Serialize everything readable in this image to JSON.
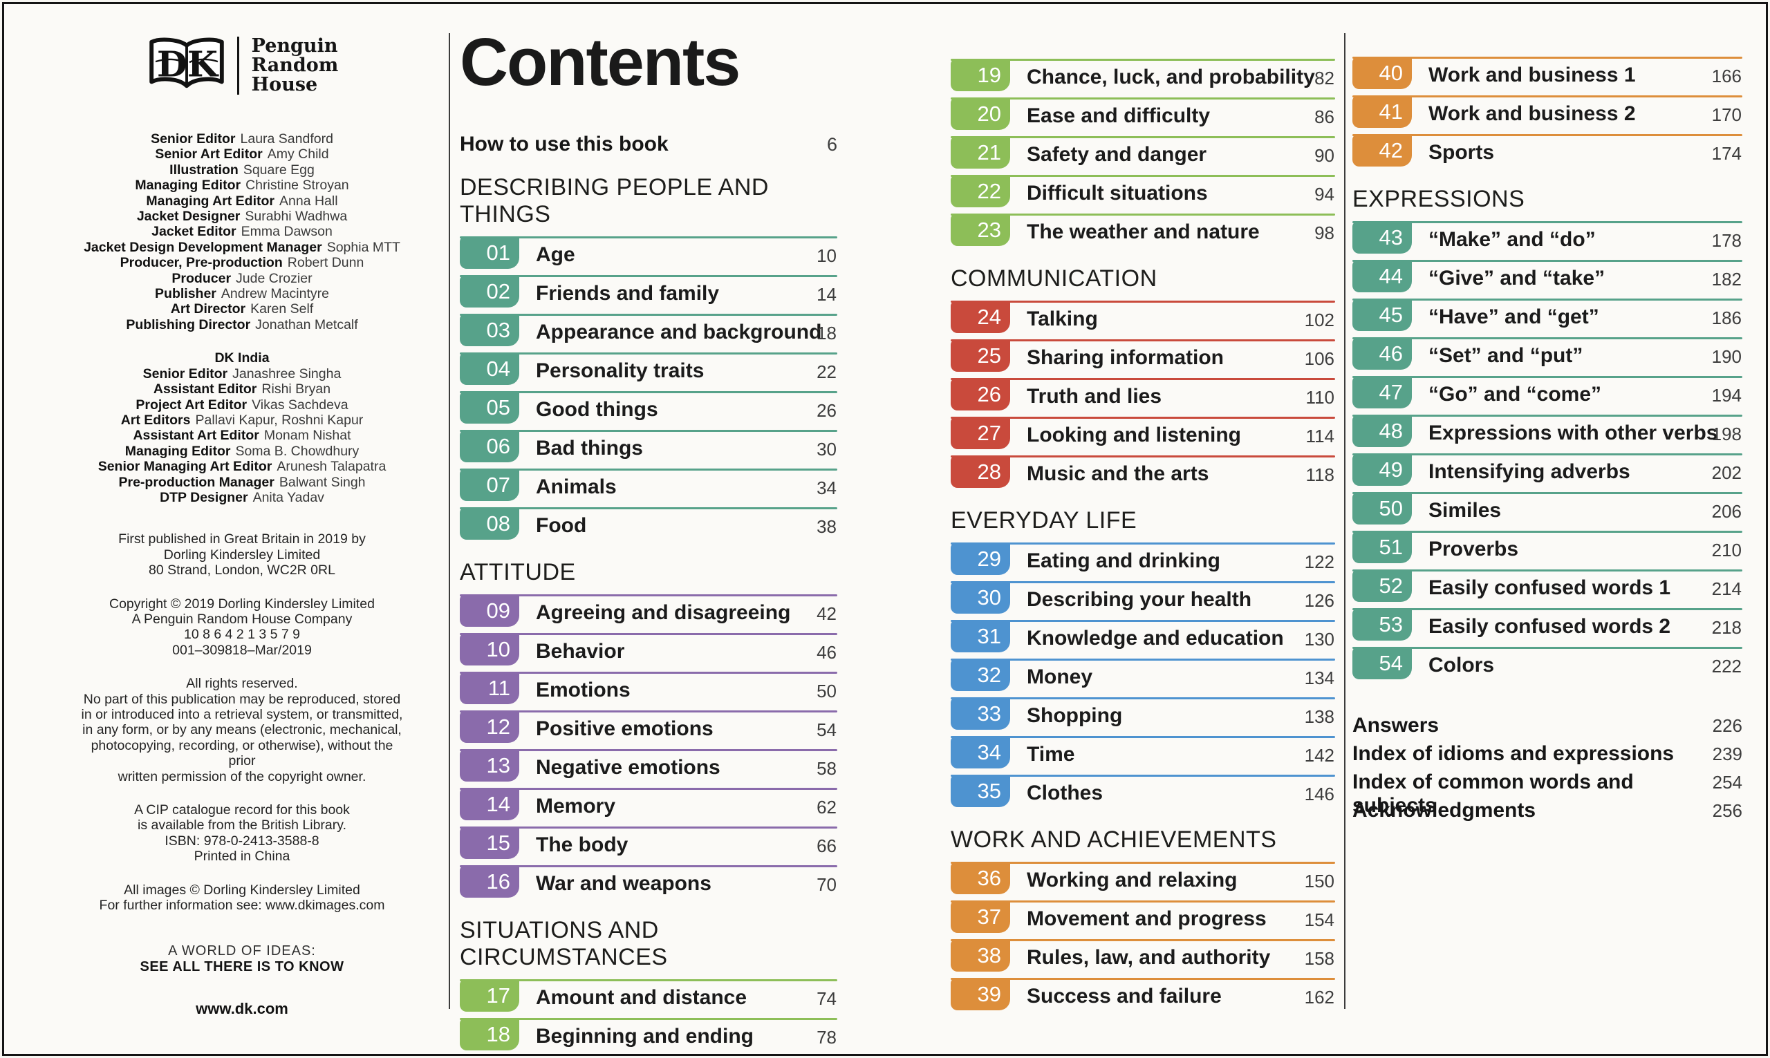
{
  "brand": {
    "dk_logo_text": "DK",
    "publisher_lines": [
      "Penguin",
      "Random",
      "House"
    ]
  },
  "credits": {
    "uk": [
      {
        "label": "Senior Editor",
        "name": "Laura Sandford"
      },
      {
        "label": "Senior Art Editor",
        "name": "Amy Child"
      },
      {
        "label": "Illustration",
        "name": "Square Egg"
      },
      {
        "label": "Managing Editor",
        "name": "Christine Stroyan"
      },
      {
        "label": "Managing Art Editor",
        "name": "Anna Hall"
      },
      {
        "label": "Jacket Designer",
        "name": "Surabhi Wadhwa"
      },
      {
        "label": "Jacket Editor",
        "name": "Emma Dawson"
      },
      {
        "label": "Jacket Design Development Manager",
        "name": "Sophia MTT"
      },
      {
        "label": "Producer, Pre-production",
        "name": "Robert Dunn"
      },
      {
        "label": "Producer",
        "name": "Jude Crozier"
      },
      {
        "label": "Publisher",
        "name": "Andrew Macintyre"
      },
      {
        "label": "Art Director",
        "name": "Karen Self"
      },
      {
        "label": "Publishing Director",
        "name": "Jonathan Metcalf"
      }
    ],
    "india_heading": "DK India",
    "india": [
      {
        "label": "Senior Editor",
        "name": "Janashree Singha"
      },
      {
        "label": "Assistant Editor",
        "name": "Rishi Bryan"
      },
      {
        "label": "Project Art Editor",
        "name": "Vikas Sachdeva"
      },
      {
        "label": "Art Editors",
        "name": "Pallavi Kapur, Roshni Kapur"
      },
      {
        "label": "Assistant Art Editor",
        "name": "Monam Nishat"
      },
      {
        "label": "Managing Editor",
        "name": "Soma B. Chowdhury"
      },
      {
        "label": "Senior Managing Art Editor",
        "name": "Arunesh Talapatra"
      },
      {
        "label": "Pre-production Manager",
        "name": "Balwant Singh"
      },
      {
        "label": "DTP Designer",
        "name": "Anita Yadav"
      }
    ]
  },
  "publication": {
    "p1": "First published in Great Britain in 2019 by\nDorling Kindersley Limited\n80 Strand, London, WC2R 0RL",
    "p2": "Copyright © 2019 Dorling Kindersley Limited\nA Penguin Random House Company\n10 8 6 4 2 1 3 5 7 9\n001–309818–Mar/2019",
    "p3": "All rights reserved.\nNo part of this publication may be reproduced, stored\nin or introduced into a retrieval system, or transmitted,\nin any form, or by any means (electronic, mechanical,\nphotocopying, recording, or otherwise), without the prior\nwritten permission of the copyright owner.",
    "p4": "A CIP catalogue record for this book\nis available from the British Library.\nISBN: 978-0-2413-3588-8\nPrinted in China",
    "p5": "All images © Dorling Kindersley Limited\nFor further information see: www.dkimages.com",
    "world_line1": "A WORLD OF IDEAS:",
    "world_line2": "SEE ALL THERE IS TO KNOW",
    "url": "www.dk.com"
  },
  "colors": {
    "teal": "#57a28a",
    "purple": "#8a6bab",
    "green": "#8dbe58",
    "red": "#c94a3c",
    "blue": "#4e93d0",
    "orange": "#dd8e3b"
  },
  "contents": {
    "title": "Contents",
    "how_to": {
      "label": "How to use this book",
      "page": "6"
    }
  },
  "toc": {
    "column2": {
      "sections": [
        {
          "title": "DESCRIBING PEOPLE AND THINGS",
          "color": "teal",
          "chapters": [
            {
              "num": "01",
              "title": "Age",
              "page": "10"
            },
            {
              "num": "02",
              "title": "Friends and family",
              "page": "14"
            },
            {
              "num": "03",
              "title": "Appearance and background",
              "page": "18"
            },
            {
              "num": "04",
              "title": "Personality traits",
              "page": "22"
            },
            {
              "num": "05",
              "title": "Good things",
              "page": "26"
            },
            {
              "num": "06",
              "title": "Bad things",
              "page": "30"
            },
            {
              "num": "07",
              "title": "Animals",
              "page": "34"
            },
            {
              "num": "08",
              "title": "Food",
              "page": "38"
            }
          ]
        },
        {
          "title": "ATTITUDE",
          "color": "purple",
          "chapters": [
            {
              "num": "09",
              "title": "Agreeing and disagreeing",
              "page": "42"
            },
            {
              "num": "10",
              "title": "Behavior",
              "page": "46"
            },
            {
              "num": "11",
              "title": "Emotions",
              "page": "50"
            },
            {
              "num": "12",
              "title": "Positive emotions",
              "page": "54"
            },
            {
              "num": "13",
              "title": "Negative emotions",
              "page": "58"
            },
            {
              "num": "14",
              "title": "Memory",
              "page": "62"
            },
            {
              "num": "15",
              "title": "The body",
              "page": "66"
            },
            {
              "num": "16",
              "title": "War and weapons",
              "page": "70"
            }
          ]
        },
        {
          "title": "SITUATIONS AND CIRCUMSTANCES",
          "color": "green",
          "chapters": [
            {
              "num": "17",
              "title": "Amount and distance",
              "page": "74"
            },
            {
              "num": "18",
              "title": "Beginning and ending",
              "page": "78"
            }
          ]
        }
      ]
    },
    "column3": {
      "sections": [
        {
          "title": null,
          "color": "green",
          "chapters": [
            {
              "num": "19",
              "title": "Chance, luck, and probability",
              "page": "82"
            },
            {
              "num": "20",
              "title": "Ease and difficulty",
              "page": "86"
            },
            {
              "num": "21",
              "title": "Safety and danger",
              "page": "90"
            },
            {
              "num": "22",
              "title": "Difficult situations",
              "page": "94"
            },
            {
              "num": "23",
              "title": "The weather and nature",
              "page": "98"
            }
          ]
        },
        {
          "title": "COMMUNICATION",
          "color": "red",
          "chapters": [
            {
              "num": "24",
              "title": "Talking",
              "page": "102"
            },
            {
              "num": "25",
              "title": "Sharing information",
              "page": "106"
            },
            {
              "num": "26",
              "title": "Truth and lies",
              "page": "110"
            },
            {
              "num": "27",
              "title": "Looking and listening",
              "page": "114"
            },
            {
              "num": "28",
              "title": "Music and the arts",
              "page": "118"
            }
          ]
        },
        {
          "title": "EVERYDAY LIFE",
          "color": "blue",
          "chapters": [
            {
              "num": "29",
              "title": "Eating and drinking",
              "page": "122"
            },
            {
              "num": "30",
              "title": "Describing your health",
              "page": "126"
            },
            {
              "num": "31",
              "title": "Knowledge and education",
              "page": "130"
            },
            {
              "num": "32",
              "title": "Money",
              "page": "134"
            },
            {
              "num": "33",
              "title": "Shopping",
              "page": "138"
            },
            {
              "num": "34",
              "title": "Time",
              "page": "142"
            },
            {
              "num": "35",
              "title": "Clothes",
              "page": "146"
            }
          ]
        },
        {
          "title": "WORK AND ACHIEVEMENTS",
          "color": "orange",
          "chapters": [
            {
              "num": "36",
              "title": "Working and relaxing",
              "page": "150"
            },
            {
              "num": "37",
              "title": "Movement and progress",
              "page": "154"
            },
            {
              "num": "38",
              "title": "Rules, law, and authority",
              "page": "158"
            },
            {
              "num": "39",
              "title": "Success and failure",
              "page": "162"
            }
          ]
        }
      ]
    },
    "column4": {
      "sections": [
        {
          "title": null,
          "color": "orange",
          "chapters": [
            {
              "num": "40",
              "title": "Work and business 1",
              "page": "166"
            },
            {
              "num": "41",
              "title": "Work and business 2",
              "page": "170"
            },
            {
              "num": "42",
              "title": "Sports",
              "page": "174"
            }
          ]
        },
        {
          "title": "EXPRESSIONS",
          "color": "teal",
          "chapters": [
            {
              "num": "43",
              "title": "“Make” and “do”",
              "page": "178"
            },
            {
              "num": "44",
              "title": "“Give” and “take”",
              "page": "182"
            },
            {
              "num": "45",
              "title": "“Have” and “get”",
              "page": "186"
            },
            {
              "num": "46",
              "title": "“Set” and “put”",
              "page": "190"
            },
            {
              "num": "47",
              "title": "“Go” and “come”",
              "page": "194"
            },
            {
              "num": "48",
              "title": "Expressions with other verbs",
              "page": "198"
            },
            {
              "num": "49",
              "title": "Intensifying adverbs",
              "page": "202"
            },
            {
              "num": "50",
              "title": "Similes",
              "page": "206"
            },
            {
              "num": "51",
              "title": "Proverbs",
              "page": "210"
            },
            {
              "num": "52",
              "title": "Easily confused words 1",
              "page": "214"
            },
            {
              "num": "53",
              "title": "Easily confused words 2",
              "page": "218"
            },
            {
              "num": "54",
              "title": "Colors",
              "page": "222"
            }
          ]
        }
      ],
      "end_matter": [
        {
          "label": "Answers",
          "page": "226"
        },
        {
          "label": "Index of idioms and expressions",
          "page": "239"
        },
        {
          "label": "Index of common words and subjects",
          "page": "254"
        },
        {
          "label": "Acknowledgments",
          "page": "256"
        }
      ]
    }
  }
}
